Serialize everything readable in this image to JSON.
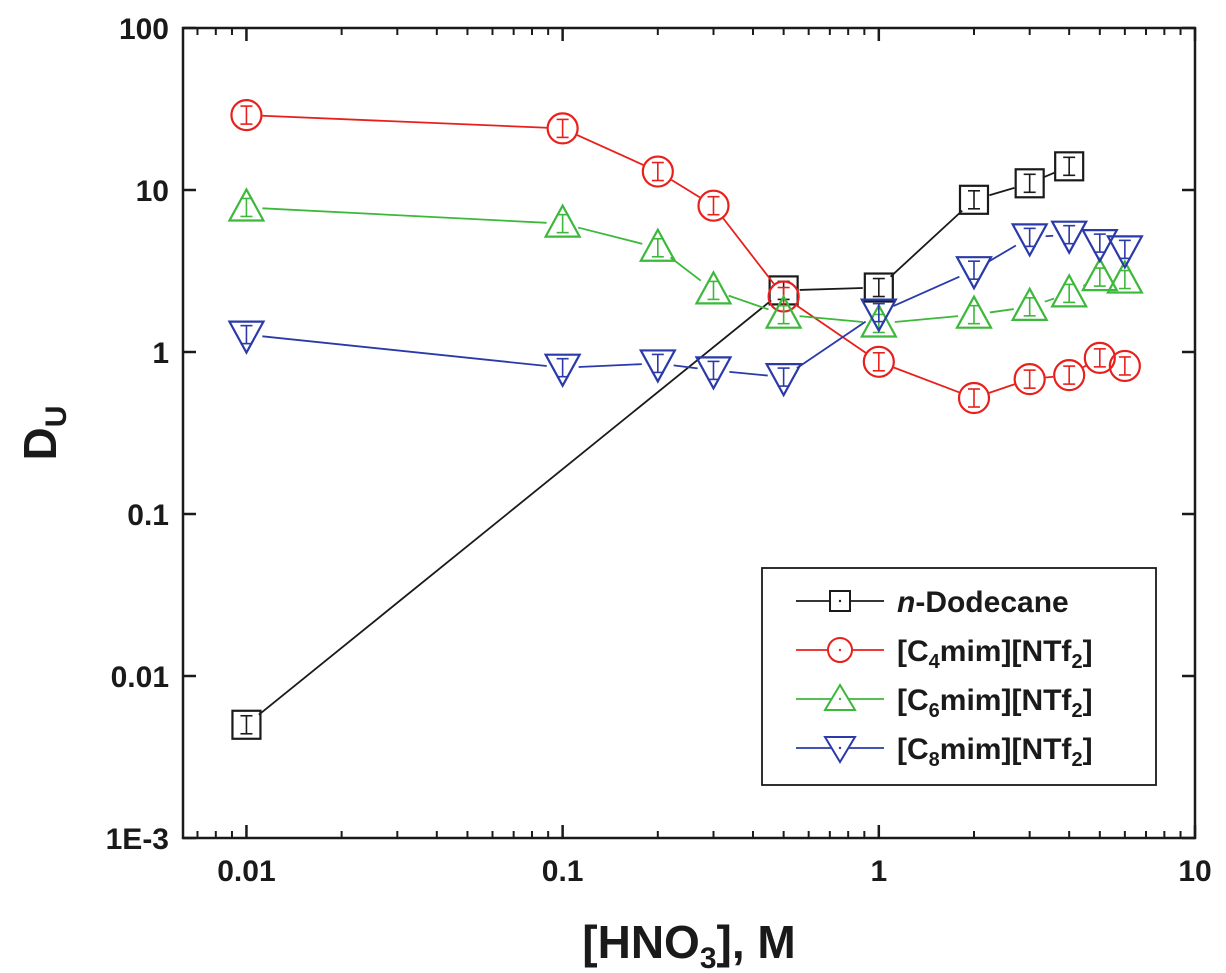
{
  "chart_data": {
    "type": "scatter",
    "xlabel": {
      "pre": "[HNO",
      "sub": "3",
      "post": "], M"
    },
    "ylabel": {
      "main": "D",
      "sub": "U"
    },
    "x_scale": "log",
    "y_scale": "log",
    "xlim": [
      0.0063,
      10
    ],
    "ylim": [
      0.001,
      100
    ],
    "x_ticks": [
      {
        "value": 0.01,
        "label": "0.01"
      },
      {
        "value": 0.1,
        "label": "0.1"
      },
      {
        "value": 1,
        "label": "1"
      },
      {
        "value": 10,
        "label": "10"
      }
    ],
    "y_ticks": [
      {
        "value": 0.001,
        "label": "1E-3"
      },
      {
        "value": 0.01,
        "label": "0.01"
      },
      {
        "value": 0.1,
        "label": "0.1"
      },
      {
        "value": 1,
        "label": "1"
      },
      {
        "value": 10,
        "label": "10"
      },
      {
        "value": 100,
        "label": "100"
      }
    ],
    "grid": false,
    "legend_position": "bottom-right",
    "series": [
      {
        "name": "n-Dodecane",
        "label_parts": [
          {
            "t": "n",
            "style": "italic"
          },
          {
            "t": "-Dodecane"
          }
        ],
        "color": "#1a1a1a",
        "marker": "square",
        "x": [
          0.01,
          0.5,
          1,
          2,
          3,
          4
        ],
        "y": [
          0.005,
          2.4,
          2.5,
          8.7,
          11,
          14
        ]
      },
      {
        "name": "[C4mim][NTf2]",
        "label_parts": [
          {
            "t": "[C"
          },
          {
            "t": "4",
            "sub": true
          },
          {
            "t": "mim][NTf"
          },
          {
            "t": "2",
            "sub": true
          },
          {
            "t": "]"
          }
        ],
        "color": "#e8201c",
        "marker": "circle",
        "x": [
          0.01,
          0.1,
          0.2,
          0.3,
          0.5,
          1,
          2,
          3,
          4,
          5,
          6
        ],
        "y": [
          29,
          24,
          13,
          8,
          2.2,
          0.87,
          0.52,
          0.68,
          0.72,
          0.92,
          0.82
        ]
      },
      {
        "name": "[C6mim][NTf2]",
        "label_parts": [
          {
            "t": "[C"
          },
          {
            "t": "6",
            "sub": true
          },
          {
            "t": "mim][NTf"
          },
          {
            "t": "2",
            "sub": true
          },
          {
            "t": "]"
          }
        ],
        "color": "#3cb83a",
        "marker": "triangle-up",
        "x": [
          0.01,
          0.1,
          0.2,
          0.3,
          0.5,
          1,
          2,
          3,
          4,
          5,
          6
        ],
        "y": [
          7.8,
          6.2,
          4.4,
          2.4,
          1.7,
          1.5,
          1.7,
          1.9,
          2.3,
          2.9,
          2.8
        ]
      },
      {
        "name": "[C8mim][NTf2]",
        "label_parts": [
          {
            "t": "[C"
          },
          {
            "t": "8",
            "sub": true
          },
          {
            "t": "mim][NTf"
          },
          {
            "t": "2",
            "sub": true
          },
          {
            "t": "]"
          }
        ],
        "color": "#2a3aa8",
        "marker": "triangle-down",
        "x": [
          0.01,
          0.1,
          0.2,
          0.3,
          0.5,
          1,
          2,
          3,
          4,
          5,
          6
        ],
        "y": [
          1.28,
          0.8,
          0.85,
          0.77,
          0.7,
          1.75,
          3.2,
          5.1,
          5.3,
          4.7,
          4.3
        ]
      }
    ]
  }
}
